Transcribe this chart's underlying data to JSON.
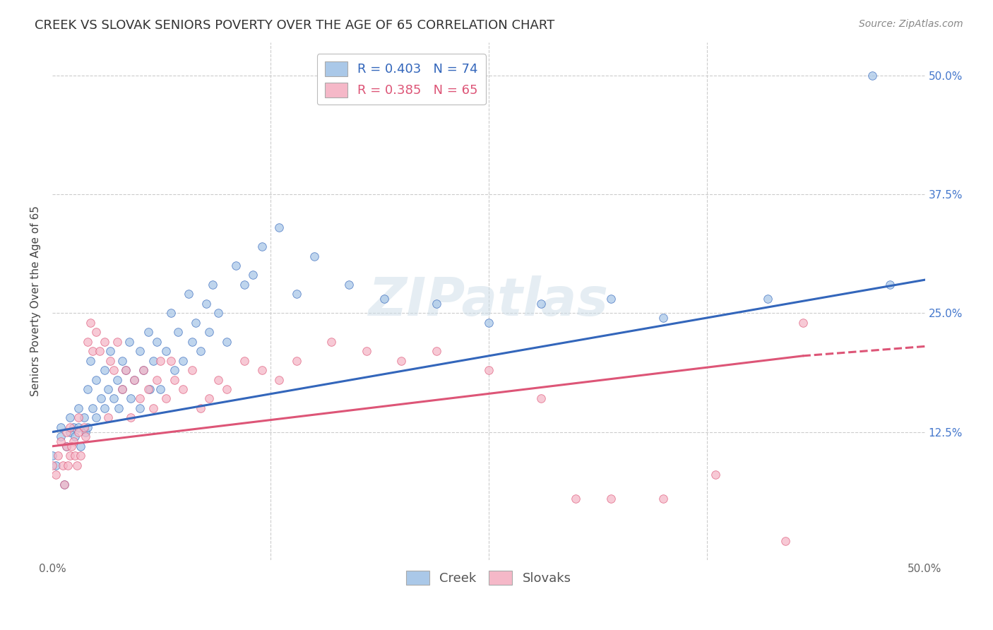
{
  "title": "CREEK VS SLOVAK SENIORS POVERTY OVER THE AGE OF 65 CORRELATION CHART",
  "source": "Source: ZipAtlas.com",
  "ylabel": "Seniors Poverty Over the Age of 65",
  "creek_color": "#aac8e8",
  "slovak_color": "#f5b8c8",
  "creek_line_color": "#3366bb",
  "slovak_line_color": "#dd5577",
  "creek_R": 0.403,
  "creek_N": 74,
  "slovak_R": 0.385,
  "slovak_N": 65,
  "title_fontsize": 13,
  "source_fontsize": 10,
  "axis_label_fontsize": 11,
  "tick_fontsize": 11,
  "legend_fontsize": 13,
  "watermark_text": "ZIPatlas",
  "background_color": "#ffffff",
  "grid_color": "#cccccc",
  "marker_size": 70,
  "line_width": 2.2,
  "xlim": [
    0.0,
    0.5
  ],
  "ylim": [
    -0.01,
    0.535
  ],
  "plot_ylim": [
    0.0,
    0.5
  ],
  "yticks": [
    0.0,
    0.125,
    0.25,
    0.375,
    0.5
  ],
  "xticks": [
    0.0,
    0.125,
    0.25,
    0.375,
    0.5
  ],
  "creek_x": [
    0.0,
    0.005,
    0.005,
    0.008,
    0.01,
    0.01,
    0.012,
    0.013,
    0.015,
    0.015,
    0.016,
    0.018,
    0.019,
    0.02,
    0.02,
    0.022,
    0.023,
    0.025,
    0.025,
    0.028,
    0.03,
    0.03,
    0.032,
    0.033,
    0.035,
    0.037,
    0.038,
    0.04,
    0.04,
    0.042,
    0.044,
    0.045,
    0.047,
    0.05,
    0.05,
    0.052,
    0.055,
    0.056,
    0.058,
    0.06,
    0.062,
    0.065,
    0.068,
    0.07,
    0.072,
    0.075,
    0.078,
    0.08,
    0.082,
    0.085,
    0.088,
    0.09,
    0.092,
    0.095,
    0.1,
    0.105,
    0.11,
    0.115,
    0.12,
    0.13,
    0.14,
    0.15,
    0.17,
    0.19,
    0.22,
    0.25,
    0.28,
    0.32,
    0.35,
    0.41,
    0.47,
    0.48,
    0.002,
    0.007
  ],
  "creek_y": [
    0.1,
    0.12,
    0.13,
    0.11,
    0.125,
    0.14,
    0.13,
    0.12,
    0.15,
    0.13,
    0.11,
    0.14,
    0.125,
    0.17,
    0.13,
    0.2,
    0.15,
    0.18,
    0.14,
    0.16,
    0.19,
    0.15,
    0.17,
    0.21,
    0.16,
    0.18,
    0.15,
    0.2,
    0.17,
    0.19,
    0.22,
    0.16,
    0.18,
    0.21,
    0.15,
    0.19,
    0.23,
    0.17,
    0.2,
    0.22,
    0.17,
    0.21,
    0.25,
    0.19,
    0.23,
    0.2,
    0.27,
    0.22,
    0.24,
    0.21,
    0.26,
    0.23,
    0.28,
    0.25,
    0.22,
    0.3,
    0.28,
    0.29,
    0.32,
    0.34,
    0.27,
    0.31,
    0.28,
    0.265,
    0.26,
    0.24,
    0.26,
    0.265,
    0.245,
    0.265,
    0.5,
    0.28,
    0.09,
    0.07
  ],
  "slovak_x": [
    0.0,
    0.003,
    0.005,
    0.006,
    0.008,
    0.008,
    0.01,
    0.01,
    0.012,
    0.013,
    0.015,
    0.015,
    0.016,
    0.018,
    0.019,
    0.02,
    0.022,
    0.023,
    0.025,
    0.027,
    0.03,
    0.032,
    0.033,
    0.035,
    0.037,
    0.04,
    0.042,
    0.045,
    0.047,
    0.05,
    0.052,
    0.055,
    0.058,
    0.06,
    0.062,
    0.065,
    0.068,
    0.07,
    0.075,
    0.08,
    0.085,
    0.09,
    0.095,
    0.1,
    0.11,
    0.12,
    0.13,
    0.14,
    0.16,
    0.18,
    0.2,
    0.22,
    0.25,
    0.28,
    0.3,
    0.32,
    0.35,
    0.38,
    0.42,
    0.43,
    0.002,
    0.007,
    0.009,
    0.011,
    0.014
  ],
  "slovak_y": [
    0.09,
    0.1,
    0.115,
    0.09,
    0.11,
    0.125,
    0.1,
    0.13,
    0.115,
    0.1,
    0.125,
    0.14,
    0.1,
    0.13,
    0.12,
    0.22,
    0.24,
    0.21,
    0.23,
    0.21,
    0.22,
    0.14,
    0.2,
    0.19,
    0.22,
    0.17,
    0.19,
    0.14,
    0.18,
    0.16,
    0.19,
    0.17,
    0.15,
    0.18,
    0.2,
    0.16,
    0.2,
    0.18,
    0.17,
    0.19,
    0.15,
    0.16,
    0.18,
    0.17,
    0.2,
    0.19,
    0.18,
    0.2,
    0.22,
    0.21,
    0.2,
    0.21,
    0.19,
    0.16,
    0.055,
    0.055,
    0.055,
    0.08,
    0.01,
    0.24,
    0.08,
    0.07,
    0.09,
    0.11,
    0.09
  ],
  "creek_line_x": [
    0.0,
    0.5
  ],
  "creek_line_y_start": 0.125,
  "creek_line_y_end": 0.285,
  "slovak_line_x_solid_end": 0.43,
  "slovak_line_y_start": 0.11,
  "slovak_line_y_end_solid": 0.205,
  "slovak_line_y_end_dashed": 0.215
}
